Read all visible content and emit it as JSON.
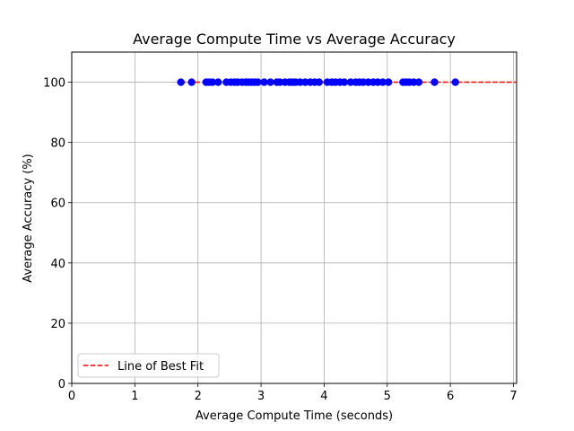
{
  "chart_data": {
    "type": "scatter",
    "title": "Average Compute Time vs Average Accuracy",
    "xlabel": "Average Compute Time (seconds)",
    "ylabel": "Average Accuracy (%)",
    "xlim": [
      0,
      7.05
    ],
    "ylim": [
      0,
      110
    ],
    "xticks": [
      0,
      1,
      2,
      3,
      4,
      5,
      6,
      7
    ],
    "yticks": [
      0,
      20,
      40,
      60,
      80,
      100
    ],
    "grid": true,
    "legend_position": "lower-left",
    "series": [
      {
        "kind": "scatter",
        "color": "#0000ff",
        "x": [
          1.73,
          1.9,
          2.13,
          2.18,
          2.23,
          2.32,
          2.45,
          2.52,
          2.58,
          2.63,
          2.7,
          2.76,
          2.8,
          2.85,
          2.9,
          2.95,
          3.05,
          3.15,
          3.25,
          3.3,
          3.38,
          3.45,
          3.5,
          3.55,
          3.62,
          3.7,
          3.78,
          3.85,
          3.92,
          4.05,
          4.12,
          4.18,
          4.25,
          4.32,
          4.42,
          4.5,
          4.56,
          4.62,
          4.7,
          4.78,
          4.85,
          4.93,
          5.02,
          5.25,
          5.3,
          5.35,
          5.42,
          5.5,
          5.75,
          6.08
        ],
        "y": [
          100,
          100,
          100,
          100,
          100,
          100,
          100,
          100,
          100,
          100,
          100,
          100,
          100,
          100,
          100,
          100,
          100,
          100,
          100,
          100,
          100,
          100,
          100,
          100,
          100,
          100,
          100,
          100,
          100,
          100,
          100,
          100,
          100,
          100,
          100,
          100,
          100,
          100,
          100,
          100,
          100,
          100,
          100,
          100,
          100,
          100,
          100,
          100,
          100,
          100
        ]
      },
      {
        "kind": "line",
        "name": "Line of Best Fit",
        "color": "#ff0000",
        "style": "dashed",
        "x": [
          1.73,
          7.05
        ],
        "y": [
          100,
          100
        ]
      }
    ]
  }
}
